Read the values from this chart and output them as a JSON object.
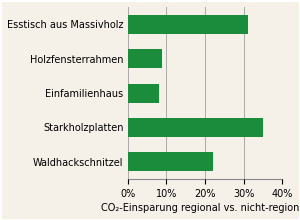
{
  "categories": [
    "Esstisch aus Massivholz",
    "Holzfensterrahmen",
    "Einfamilienhaus",
    "Starkholzplatten",
    "Waldhackschnitzel"
  ],
  "values": [
    31,
    9,
    8,
    35,
    22
  ],
  "bar_color": "#1a8c3c",
  "xlabel": "CO₂-Einsparung regional vs. nicht-regional",
  "xlim": [
    0,
    40
  ],
  "xticks": [
    0,
    10,
    20,
    30,
    40
  ],
  "grid_color": "#aaaaaa",
  "background_color": "#f5f0e8",
  "bar_height": 0.55,
  "title_fontsize": 8,
  "label_fontsize": 7,
  "tick_fontsize": 7
}
